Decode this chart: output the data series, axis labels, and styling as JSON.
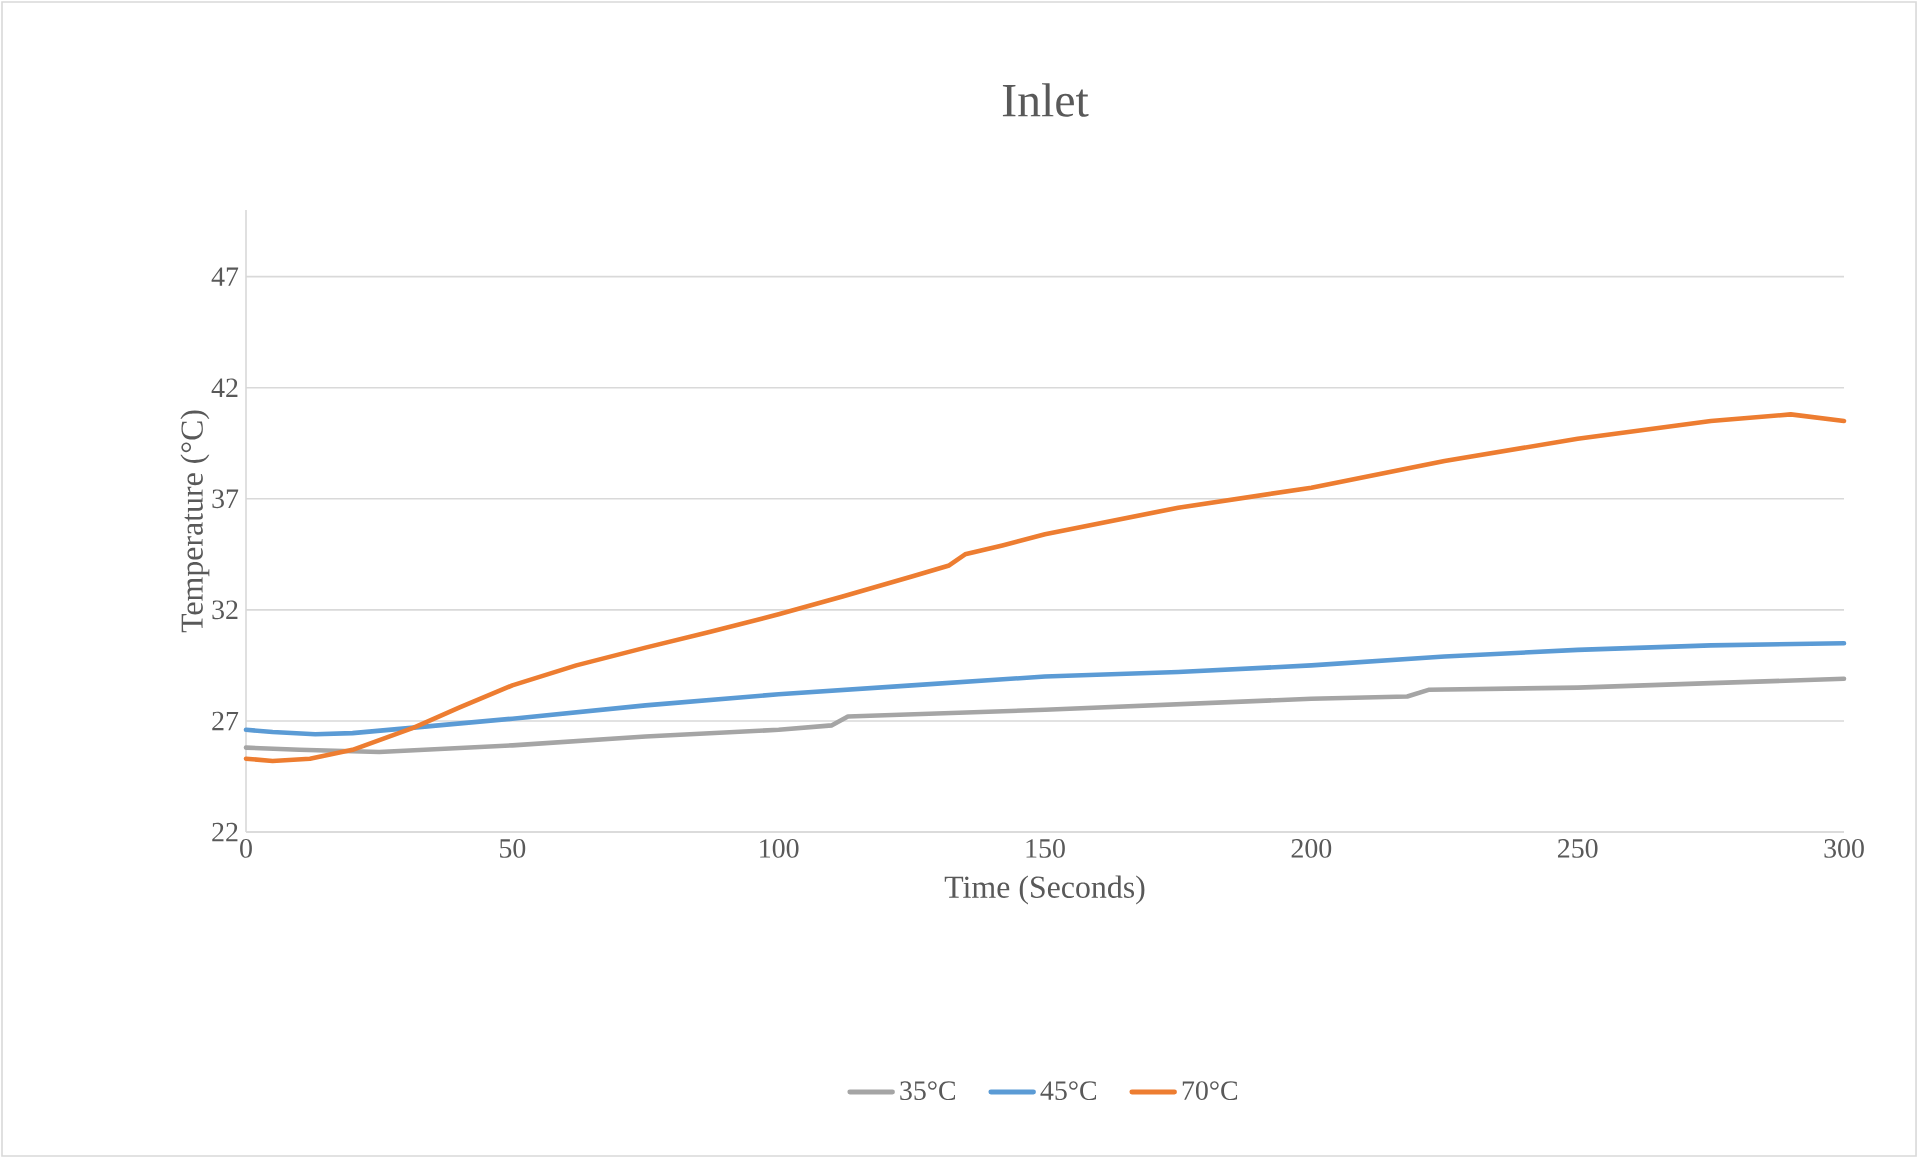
{
  "chart_data": {
    "type": "line",
    "title": "Inlet",
    "xlabel": "Time (Seconds)",
    "ylabel": "Temperature (°C)",
    "xlim": [
      0,
      300
    ],
    "xticks": [
      0,
      50,
      100,
      150,
      200,
      250,
      300
    ],
    "ylim": [
      22,
      50
    ],
    "yticks": [
      22,
      27,
      32,
      37,
      42,
      47
    ],
    "grid": "y",
    "legend": "bottom",
    "marker": "none",
    "line_style": "solid",
    "series": [
      {
        "name": "35°C",
        "color": "#a5a5a5",
        "x": [
          0,
          10,
          25,
          50,
          75,
          100,
          110,
          113,
          150,
          200,
          218,
          222,
          250,
          275,
          300
        ],
        "values": [
          25.8,
          25.7,
          25.6,
          25.9,
          26.3,
          26.6,
          26.8,
          27.2,
          27.5,
          28.0,
          28.1,
          28.4,
          28.5,
          28.7,
          28.9
        ]
      },
      {
        "name": "45°C",
        "color": "#5b9bd5",
        "x": [
          0,
          5,
          13,
          20,
          31.5,
          50,
          75,
          100,
          125,
          150,
          175,
          200,
          225,
          250,
          275,
          300
        ],
        "values": [
          26.6,
          26.5,
          26.4,
          26.45,
          26.7,
          27.1,
          27.7,
          28.2,
          28.6,
          29.0,
          29.2,
          29.5,
          29.9,
          30.2,
          30.4,
          30.5
        ]
      },
      {
        "name": "70°C",
        "color": "#ed7d31",
        "x": [
          0,
          5,
          12,
          20,
          31.5,
          40,
          50,
          62,
          75,
          87,
          100,
          112,
          125,
          132,
          135,
          142,
          150,
          175,
          200,
          225,
          250,
          275,
          290,
          300
        ],
        "values": [
          25.3,
          25.2,
          25.3,
          25.7,
          26.7,
          27.6,
          28.6,
          29.5,
          30.3,
          31.0,
          31.8,
          32.6,
          33.5,
          34.0,
          34.5,
          34.9,
          35.4,
          36.6,
          37.5,
          38.7,
          39.7,
          40.5,
          40.8,
          40.5
        ]
      }
    ]
  }
}
